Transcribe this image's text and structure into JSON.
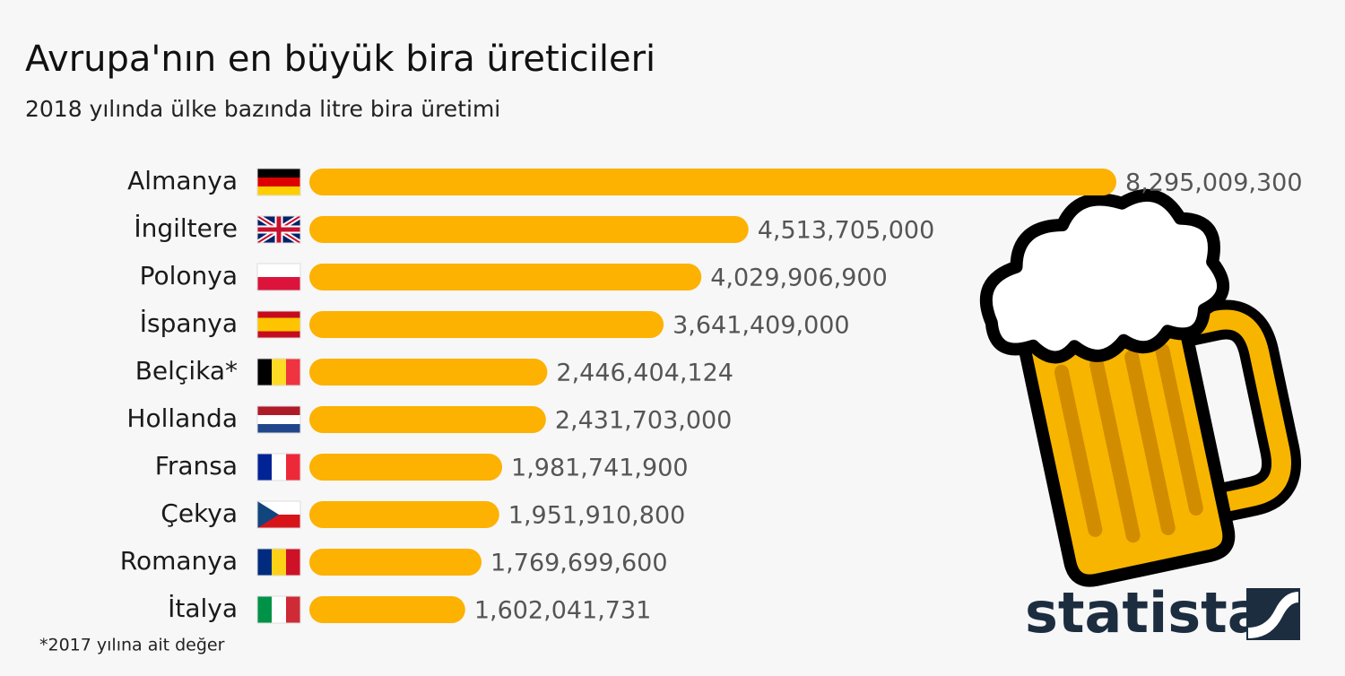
{
  "chart_data": {
    "type": "bar",
    "orientation": "horizontal",
    "title": "Avrupa'nın en büyük bira üreticileri",
    "subtitle": "2018 yılında ülke bazında litre bira üretimi",
    "categories": [
      "Almanya",
      "İngiltere",
      "Polonya",
      "İspanya",
      "Belçika*",
      "Hollanda",
      "Fransa",
      "Çekya",
      "Romanya",
      "İtalya"
    ],
    "values": [
      8295009300,
      4513705000,
      4029906900,
      3641409000,
      2446404124,
      2431703000,
      1981741900,
      1951910800,
      1769699600,
      1602041731
    ],
    "value_labels": [
      "8,295,009,300",
      "4,513,705,000",
      "4,029,906,900",
      "3,641,409,000",
      "2,446,404,124",
      "2,431,703,000",
      "1,981,741,900",
      "1,951,910,800",
      "1,769,699,600",
      "1,602,041,731"
    ],
    "color": "#fdb100",
    "footnote": "*2017 yılına ait değer",
    "logo": "statista"
  }
}
